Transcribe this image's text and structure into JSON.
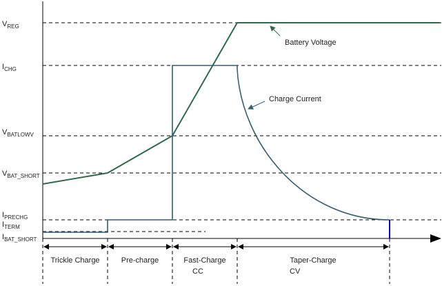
{
  "levels": [
    {
      "main": "V",
      "sub": "REG"
    },
    {
      "main": "I",
      "sub": "CHG"
    },
    {
      "main": "V",
      "sub": "BATLOWV"
    },
    {
      "main": "V",
      "sub": "BAT_SHORT"
    },
    {
      "main": "I",
      "sub": "PRECHG"
    },
    {
      "main": "I",
      "sub": "TERM"
    },
    {
      "main": "I",
      "sub": "BAT_SHORT"
    }
  ],
  "phases": [
    {
      "lines": [
        "Trickle Charge"
      ]
    },
    {
      "lines": [
        "Pre-charge"
      ]
    },
    {
      "lines": [
        "Fast-Charge",
        "CC"
      ]
    },
    {
      "lines": [
        "Taper-Charge",
        "CV"
      ]
    }
  ],
  "annotations": {
    "voltage": "Battery Voltage",
    "current": "Charge Current"
  }
}
